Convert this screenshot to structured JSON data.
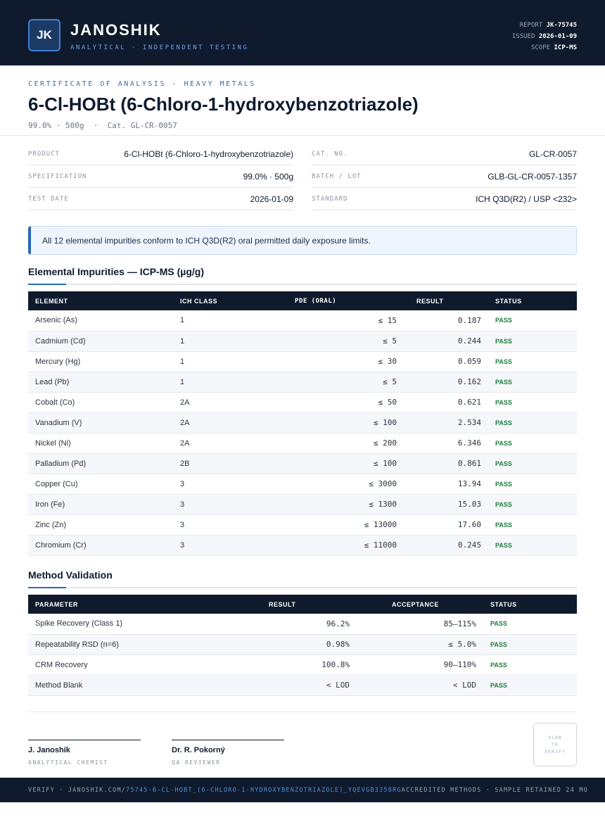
{
  "header": {
    "logo_text": "JK",
    "brand": "JANOSHIK",
    "tagline": "ANALYTICAL · INDEPENDENT TESTING",
    "report_label": "REPORT",
    "report_value": "JK-75745",
    "issued_label": "ISSUED",
    "issued_value": "2026-01-09",
    "scope_label": "SCOPE",
    "scope_value": "ICP-MS"
  },
  "title": {
    "doc_type": "CERTIFICATE OF ANALYSIS · HEAVY METALS",
    "compound": "6-Cl-HOBt (6-Chloro-1-hydroxybenzotriazole)",
    "subtitle": "99.0% · 500g  ·  Cat. GL-CR-0057"
  },
  "info": {
    "left": [
      {
        "label": "PRODUCT",
        "value": "6-Cl-HOBt (6-Chloro-1-hydroxybenzotriazole)"
      },
      {
        "label": "SPECIFICATION",
        "value": "99.0% · 500g"
      },
      {
        "label": "TEST DATE",
        "value": "2026-01-09"
      }
    ],
    "right": [
      {
        "label": "CAT. NO.",
        "value": "GL-CR-0057"
      },
      {
        "label": "BATCH / LOT",
        "value": "GLB-GL-CR-0057-1357"
      },
      {
        "label": "STANDARD",
        "value": "ICH Q3D(R2) / USP <232>"
      }
    ]
  },
  "notice": "All 12 elemental impurities conform to ICH Q3D(R2) oral permitted daily exposure limits.",
  "impurities": {
    "title": "Elemental Impurities — ICP-MS (µg/g)",
    "headers": [
      "ELEMENT",
      "ICH CLASS",
      "PDE (ORAL)",
      "RESULT",
      "STATUS"
    ],
    "rows": [
      [
        "Arsenic (As)",
        "1",
        "≤ 15",
        "0.187",
        "PASS"
      ],
      [
        "Cadmium (Cd)",
        "1",
        "≤ 5",
        "0.244",
        "PASS"
      ],
      [
        "Mercury (Hg)",
        "1",
        "≤ 30",
        "0.059",
        "PASS"
      ],
      [
        "Lead (Pb)",
        "1",
        "≤ 5",
        "0.162",
        "PASS"
      ],
      [
        "Cobalt (Co)",
        "2A",
        "≤ 50",
        "0.621",
        "PASS"
      ],
      [
        "Vanadium (V)",
        "2A",
        "≤ 100",
        "2.534",
        "PASS"
      ],
      [
        "Nickel (Ni)",
        "2A",
        "≤ 200",
        "6.346",
        "PASS"
      ],
      [
        "Palladium (Pd)",
        "2B",
        "≤ 100",
        "0.861",
        "PASS"
      ],
      [
        "Copper (Cu)",
        "3",
        "≤ 3000",
        "13.94",
        "PASS"
      ],
      [
        "Iron (Fe)",
        "3",
        "≤ 1300",
        "15.03",
        "PASS"
      ],
      [
        "Zinc (Zn)",
        "3",
        "≤ 13000",
        "17.60",
        "PASS"
      ],
      [
        "Chromium (Cr)",
        "3",
        "≤ 11000",
        "0.245",
        "PASS"
      ]
    ]
  },
  "validation": {
    "title": "Method Validation",
    "headers": [
      "PARAMETER",
      "RESULT",
      "ACCEPTANCE",
      "STATUS"
    ],
    "rows": [
      [
        "Spike Recovery (Class 1)",
        "96.2%",
        "85–115%",
        "PASS"
      ],
      [
        "Repeatability RSD (n=6)",
        "0.98%",
        "≤ 5.0%",
        "PASS"
      ],
      [
        "CRM Recovery",
        "100.8%",
        "90–110%",
        "PASS"
      ],
      [
        "Method Blank",
        "< LOD",
        "< LOD",
        "PASS"
      ]
    ]
  },
  "signatures": [
    {
      "name": "J. Janoshik",
      "role": "ANALYTICAL CHEMIST"
    },
    {
      "name": "Dr. R. Pokorný",
      "role": "QA REVIEWER"
    }
  ],
  "qr_text": "SCAN\nTO\nVERIFY",
  "footer": {
    "verify_prefix": "VERIFY · JANOSHIK.COM/",
    "verify_path": "75745-6-CL-HOBT_(6-CHLORO-1-HYDROXYBENZOTRIAZOLE)_YQEVGB3358RG",
    "right_text": "ACCREDITED METHODS · SAMPLE RETAINED 24 MO"
  },
  "colors": {
    "navy": "#0f1b2d",
    "accent": "#2a68b8",
    "pass": "#1e7d3c"
  }
}
